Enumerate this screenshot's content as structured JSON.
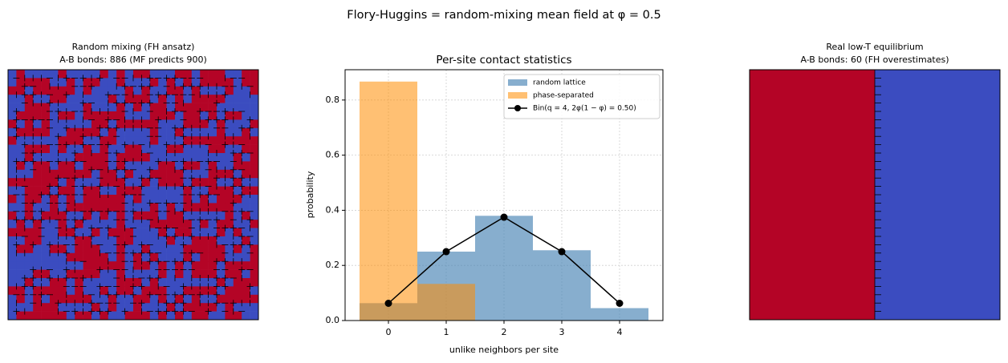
{
  "title": "Flory-Huggins = random-mixing mean field at φ = 0.5",
  "chart_data": [
    {
      "type": "image",
      "title": "Random mixing (FH ansatz)",
      "subtitle": "A-B bonds: 886   (MF predicts 900)"
    },
    {
      "type": "bar",
      "title": "Per-site contact statistics",
      "x_label": "unlike neighbors per site",
      "y_label": "probability",
      "x": [
        0,
        1,
        2,
        3,
        4
      ],
      "bins": [
        -0.5,
        0.5,
        1.5,
        2.5,
        3.5,
        4.5
      ],
      "series": [
        {
          "name": "random lattice",
          "type": "bar",
          "color": "#4682b4",
          "values": [
            0.063,
            0.25,
            0.38,
            0.255,
            0.045
          ]
        },
        {
          "name": "phase-separated",
          "type": "bar",
          "color": "#ff8c00",
          "values": [
            0.867,
            0.133,
            0,
            0,
            0
          ]
        },
        {
          "name": "Bin(q = 4,  2φ(1 − φ) = 0.50)",
          "type": "line",
          "color": "#000000",
          "values": [
            0.0625,
            0.25,
            0.375,
            0.25,
            0.0625
          ]
        }
      ],
      "xlim": [
        -0.75,
        4.75
      ],
      "ylim": [
        0,
        0.91
      ],
      "xticks": [
        0,
        1,
        2,
        3,
        4
      ],
      "yticks": [
        {
          "value": 0,
          "label": "0.0"
        },
        0.2,
        0.4,
        0.6,
        0.8
      ],
      "grid": true,
      "legend": "upper right"
    },
    {
      "type": "image",
      "title": "Real low-T equilibrium",
      "subtitle": "A-B bonds: 60   (FH overestimates)"
    }
  ]
}
